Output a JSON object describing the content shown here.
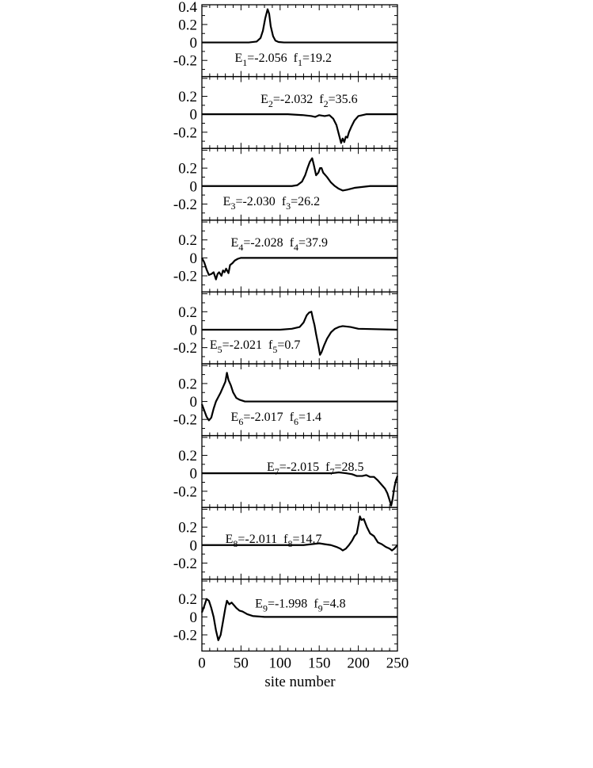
{
  "chart_data": {
    "type": "line",
    "xlabel": "site number",
    "x_ticks": [
      "0",
      "50",
      "100",
      "150",
      "200",
      "250"
    ],
    "xlim": [
      0,
      250
    ],
    "grid": false,
    "panels": [
      {
        "label_E": "E",
        "sub_E": "1",
        "val_E": "=-2.056",
        "label_f": "f",
        "sub_f": "1",
        "val_f": "=19.2",
        "energy": -2.056,
        "f": 19.2,
        "ylim": [
          -0.38,
          0.42
        ],
        "y_ticks": [
          {
            "v": 0.4,
            "t": "0.4"
          },
          {
            "v": 0.2,
            "t": "0.2"
          },
          {
            "v": 0,
            "t": "0"
          },
          {
            "v": -0.2,
            "t": "-0.2"
          }
        ],
        "annotation_at": [
          42,
          -0.17
        ],
        "x": [
          0,
          60,
          70,
          75,
          78,
          81,
          84,
          86,
          88,
          91,
          94,
          98,
          105,
          250
        ],
        "y": [
          0,
          0,
          0.01,
          0.05,
          0.13,
          0.27,
          0.37,
          0.32,
          0.18,
          0.07,
          0.02,
          0.005,
          0,
          0
        ]
      },
      {
        "label_E": "E",
        "sub_E": "2",
        "val_E": "=-2.032",
        "label_f": "f",
        "sub_f": "2",
        "val_f": "=35.6",
        "energy": -2.032,
        "f": 35.6,
        "ylim": [
          -0.38,
          0.42
        ],
        "y_ticks": [
          {
            "v": 0.2,
            "t": "0.2"
          },
          {
            "v": 0,
            "t": "0"
          },
          {
            "v": -0.2,
            "t": "-0.2"
          }
        ],
        "annotation_at": [
          75,
          0.17
        ],
        "x": [
          0,
          110,
          130,
          140,
          145,
          150,
          157,
          163,
          168,
          172,
          175,
          178,
          180,
          182,
          184,
          186,
          188,
          191,
          195,
          200,
          210,
          220,
          230,
          250
        ],
        "y": [
          0,
          0,
          -0.01,
          -0.02,
          -0.03,
          -0.01,
          -0.02,
          -0.01,
          -0.05,
          -0.12,
          -0.22,
          -0.32,
          -0.27,
          -0.31,
          -0.25,
          -0.26,
          -0.2,
          -0.14,
          -0.07,
          -0.02,
          0,
          0,
          0,
          0
        ]
      },
      {
        "label_E": "E",
        "sub_E": "3",
        "val_E": "=-2.030",
        "label_f": "f",
        "sub_f": "3",
        "val_f": "=26.2",
        "energy": -2.03,
        "f": 26.2,
        "ylim": [
          -0.38,
          0.42
        ],
        "y_ticks": [
          {
            "v": 0.2,
            "t": "0.2"
          },
          {
            "v": 0,
            "t": "0"
          },
          {
            "v": -0.2,
            "t": "-0.2"
          }
        ],
        "annotation_at": [
          27,
          -0.17
        ],
        "x": [
          0,
          115,
          122,
          128,
          132,
          135,
          138,
          141,
          143,
          146,
          149,
          151,
          153,
          155,
          160,
          165,
          170,
          175,
          180,
          186,
          195,
          205,
          215,
          250
        ],
        "y": [
          0,
          0,
          0.01,
          0.05,
          0.12,
          0.2,
          0.27,
          0.31,
          0.24,
          0.12,
          0.15,
          0.2,
          0.2,
          0.15,
          0.1,
          0.04,
          0,
          -0.03,
          -0.05,
          -0.04,
          -0.02,
          -0.01,
          0,
          0
        ]
      },
      {
        "label_E": "E",
        "sub_E": "4",
        "val_E": "=-2.028",
        "label_f": "f",
        "sub_f": "4",
        "val_f": "=37.9",
        "energy": -2.028,
        "f": 37.9,
        "ylim": [
          -0.38,
          0.42
        ],
        "y_ticks": [
          {
            "v": 0.2,
            "t": "0.2"
          },
          {
            "v": 0,
            "t": "0"
          },
          {
            "v": -0.2,
            "t": "-0.2"
          }
        ],
        "annotation_at": [
          37,
          0.17
        ],
        "x": [
          0,
          3,
          6,
          9,
          12,
          15,
          18,
          20,
          22,
          25,
          27,
          29,
          31,
          34,
          36,
          39,
          42,
          46,
          50,
          60,
          250
        ],
        "y": [
          0,
          -0.05,
          -0.13,
          -0.19,
          -0.18,
          -0.16,
          -0.24,
          -0.18,
          -0.16,
          -0.2,
          -0.14,
          -0.16,
          -0.12,
          -0.17,
          -0.08,
          -0.06,
          -0.03,
          -0.01,
          0,
          0,
          0
        ]
      },
      {
        "label_E": "E",
        "sub_E": "5",
        "val_E": "=-2.021",
        "label_f": "f",
        "sub_f": "5",
        "val_f": "=0.7",
        "energy": -2.021,
        "f": 0.7,
        "ylim": [
          -0.38,
          0.42
        ],
        "y_ticks": [
          {
            "v": 0.2,
            "t": "0.2"
          },
          {
            "v": 0,
            "t": "0"
          },
          {
            "v": -0.2,
            "t": "-0.2"
          }
        ],
        "annotation_at": [
          10,
          -0.17
        ],
        "x": [
          0,
          100,
          115,
          125,
          130,
          134,
          137,
          140,
          142,
          144,
          146,
          149,
          151,
          153,
          156,
          160,
          165,
          170,
          175,
          180,
          190,
          200,
          250
        ],
        "y": [
          0,
          0,
          0.01,
          0.03,
          0.08,
          0.16,
          0.19,
          0.2,
          0.12,
          0.05,
          -0.05,
          -0.18,
          -0.28,
          -0.25,
          -0.18,
          -0.1,
          -0.03,
          0.01,
          0.03,
          0.04,
          0.03,
          0.01,
          0
        ]
      },
      {
        "label_E": "E",
        "sub_E": "6",
        "val_E": "=-2.017",
        "label_f": "f",
        "sub_f": "6",
        "val_f": "=1.4",
        "energy": -2.017,
        "f": 1.4,
        "ylim": [
          -0.38,
          0.42
        ],
        "y_ticks": [
          {
            "v": 0.2,
            "t": "0.2"
          },
          {
            "v": 0,
            "t": "0"
          },
          {
            "v": -0.2,
            "t": "-0.2"
          }
        ],
        "annotation_at": [
          37,
          -0.17
        ],
        "x": [
          0,
          3,
          6,
          9,
          12,
          15,
          18,
          21,
          24,
          27,
          30,
          32,
          34,
          37,
          40,
          44,
          48,
          55,
          65,
          250
        ],
        "y": [
          -0.03,
          -0.1,
          -0.17,
          -0.21,
          -0.18,
          -0.08,
          0,
          0.05,
          0.1,
          0.16,
          0.22,
          0.32,
          0.24,
          0.18,
          0.1,
          0.04,
          0.02,
          0,
          0,
          0
        ]
      },
      {
        "label_E": "E",
        "sub_E": "7",
        "val_E": "=-2.015",
        "label_f": "f",
        "sub_f": "7",
        "val_f": "=28.5",
        "energy": -2.015,
        "f": 28.5,
        "ylim": [
          -0.38,
          0.42
        ],
        "y_ticks": [
          {
            "v": 0.2,
            "t": "0.2"
          },
          {
            "v": 0,
            "t": "0"
          },
          {
            "v": -0.2,
            "t": "-0.2"
          }
        ],
        "annotation_at": [
          83,
          0.07
        ],
        "x": [
          0,
          150,
          165,
          175,
          185,
          192,
          198,
          205,
          210,
          215,
          220,
          225,
          228,
          231,
          234,
          237,
          240,
          242,
          244,
          246,
          248,
          250
        ],
        "y": [
          0,
          0,
          0,
          0.01,
          0,
          -0.01,
          -0.03,
          -0.03,
          -0.02,
          -0.04,
          -0.04,
          -0.08,
          -0.11,
          -0.14,
          -0.17,
          -0.22,
          -0.3,
          -0.36,
          -0.28,
          -0.16,
          -0.08,
          -0.03
        ]
      },
      {
        "label_E": "E",
        "sub_E": "8",
        "val_E": "=-2.011",
        "label_f": "f",
        "sub_f": "8",
        "val_f": "=14.7",
        "energy": -2.011,
        "f": 14.7,
        "ylim": [
          -0.38,
          0.42
        ],
        "y_ticks": [
          {
            "v": 0.2,
            "t": "0.2"
          },
          {
            "v": 0,
            "t": "0"
          },
          {
            "v": -0.2,
            "t": "-0.2"
          }
        ],
        "annotation_at": [
          30,
          0.07
        ],
        "x": [
          0,
          130,
          150,
          157,
          165,
          172,
          177,
          180,
          184,
          188,
          192,
          195,
          198,
          200,
          202,
          204,
          207,
          211,
          215,
          220,
          225,
          230,
          235,
          240,
          243,
          246,
          250
        ],
        "y": [
          0,
          0,
          0.02,
          0.01,
          0,
          -0.02,
          -0.04,
          -0.06,
          -0.04,
          0,
          0.05,
          0.1,
          0.13,
          0.22,
          0.32,
          0.28,
          0.29,
          0.2,
          0.13,
          0.1,
          0.03,
          0.01,
          -0.02,
          -0.04,
          -0.06,
          -0.04,
          0
        ]
      },
      {
        "label_E": "E",
        "sub_E": "9",
        "val_E": "=-1.998",
        "label_f": "f",
        "sub_f": "9",
        "val_f": "=4.8",
        "energy": -1.998,
        "f": 4.8,
        "ylim": [
          -0.38,
          0.42
        ],
        "y_ticks": [
          {
            "v": 0.2,
            "t": "0.2"
          },
          {
            "v": 0,
            "t": "0"
          },
          {
            "v": -0.2,
            "t": "-0.2"
          }
        ],
        "annotation_at": [
          68,
          0.15
        ],
        "x": [
          0,
          3,
          6,
          9,
          12,
          15,
          18,
          21,
          24,
          27,
          30,
          32,
          35,
          38,
          41,
          44,
          48,
          52,
          58,
          65,
          80,
          250
        ],
        "y": [
          0.05,
          0.12,
          0.2,
          0.18,
          0.1,
          0,
          -0.15,
          -0.26,
          -0.2,
          -0.05,
          0.1,
          0.18,
          0.14,
          0.16,
          0.13,
          0.1,
          0.07,
          0.06,
          0.03,
          0.01,
          0,
          0
        ]
      }
    ]
  }
}
